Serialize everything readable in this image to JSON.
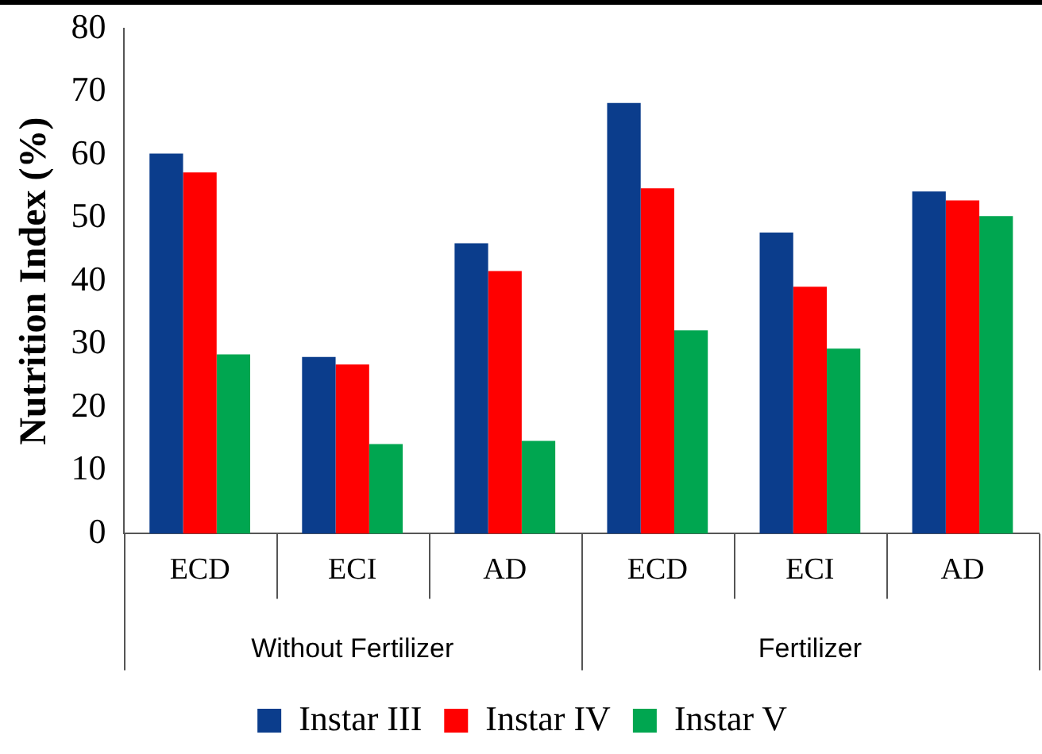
{
  "chart_data": {
    "type": "bar",
    "ylabel": "Nutrition Index (%)",
    "categories": [
      "ECD",
      "ECI",
      "AD",
      "ECD",
      "ECI",
      "AD"
    ],
    "series": [
      {
        "name": "Instar III",
        "color": "#0b3d8c",
        "values": [
          60.2,
          28.0,
          46.0,
          68.2,
          47.7,
          54.2
        ]
      },
      {
        "name": "Instar IV",
        "color": "#ff0000",
        "values": [
          57.2,
          26.8,
          41.6,
          54.7,
          39.1,
          52.8
        ]
      },
      {
        "name": "Instar V",
        "color": "#00a650",
        "values": [
          28.4,
          14.2,
          14.7,
          32.2,
          29.3,
          50.3
        ]
      }
    ],
    "ylim": [
      0,
      80
    ],
    "yticks": [
      0,
      10,
      20,
      30,
      40,
      50,
      60,
      70,
      80
    ],
    "grid": false,
    "legend": "bottom",
    "annotations": [
      "Without Fertilizer",
      "Fertilizer"
    ]
  }
}
